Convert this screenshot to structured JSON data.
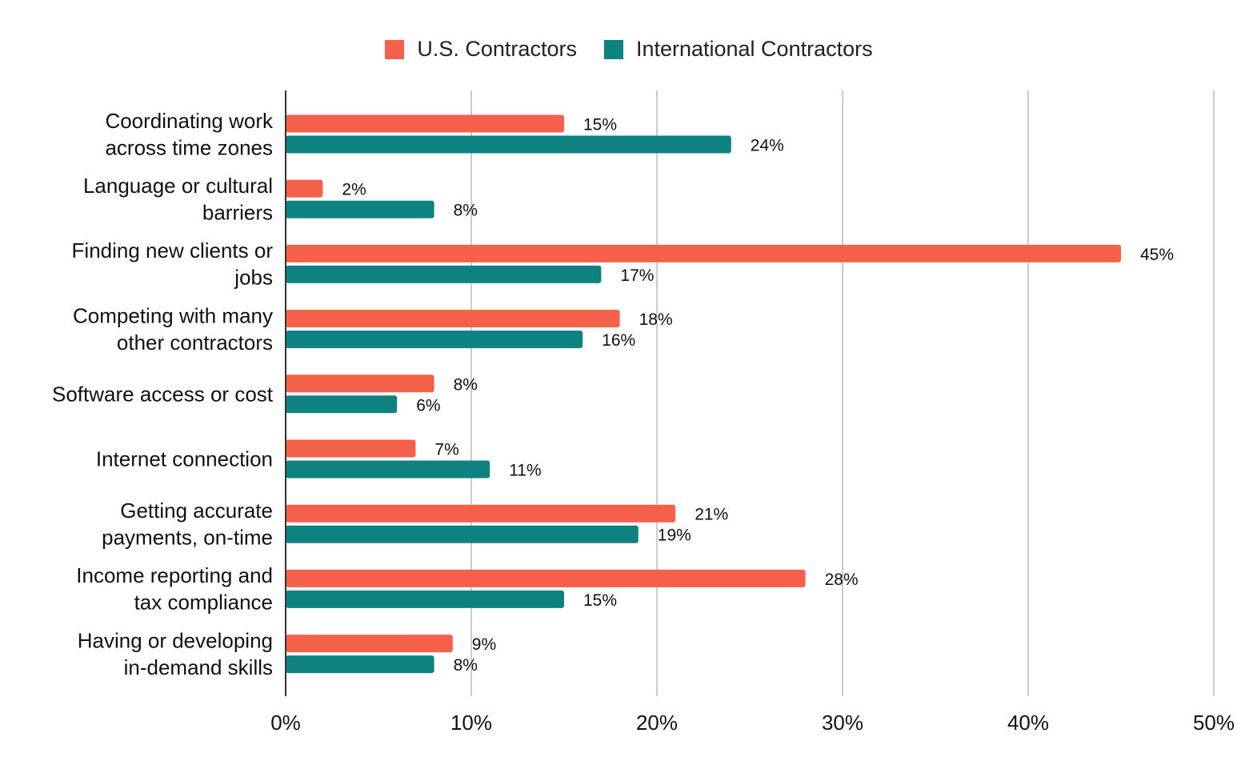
{
  "chart_data": {
    "type": "bar",
    "orientation": "horizontal",
    "categories": [
      [
        "Coordinating work",
        "across time zones"
      ],
      [
        "Language or cultural",
        "barriers"
      ],
      [
        "Finding new clients or",
        "jobs"
      ],
      [
        "Competing with many",
        "other contractors"
      ],
      [
        "Software access or cost"
      ],
      [
        "Internet connection"
      ],
      [
        "Getting accurate",
        "payments, on-time"
      ],
      [
        "Income reporting and",
        "tax compliance"
      ],
      [
        "Having or developing",
        "in-demand skills"
      ]
    ],
    "series": [
      {
        "name": "U.S. Contractors",
        "color": "#f4604a",
        "values": [
          15,
          2,
          45,
          18,
          8,
          7,
          21,
          28,
          9
        ],
        "labels": [
          "15%",
          "2%",
          "45%",
          "18%",
          "8%",
          "7%",
          "21%",
          "28%",
          "9%"
        ]
      },
      {
        "name": "International Contractors",
        "color": "#0e8280",
        "values": [
          24,
          8,
          17,
          16,
          6,
          11,
          19,
          15,
          8
        ],
        "labels": [
          "24%",
          "8%",
          "17%",
          "16%",
          "6%",
          "11%",
          "19%",
          "15%",
          "8%"
        ]
      }
    ],
    "xlim": [
      0,
      50
    ],
    "xticks": [
      0,
      10,
      20,
      30,
      40,
      50
    ],
    "xtick_labels": [
      "0%",
      "10%",
      "20%",
      "30%",
      "40%",
      "50%"
    ],
    "grid": "vertical",
    "legend_position": "top-center"
  }
}
